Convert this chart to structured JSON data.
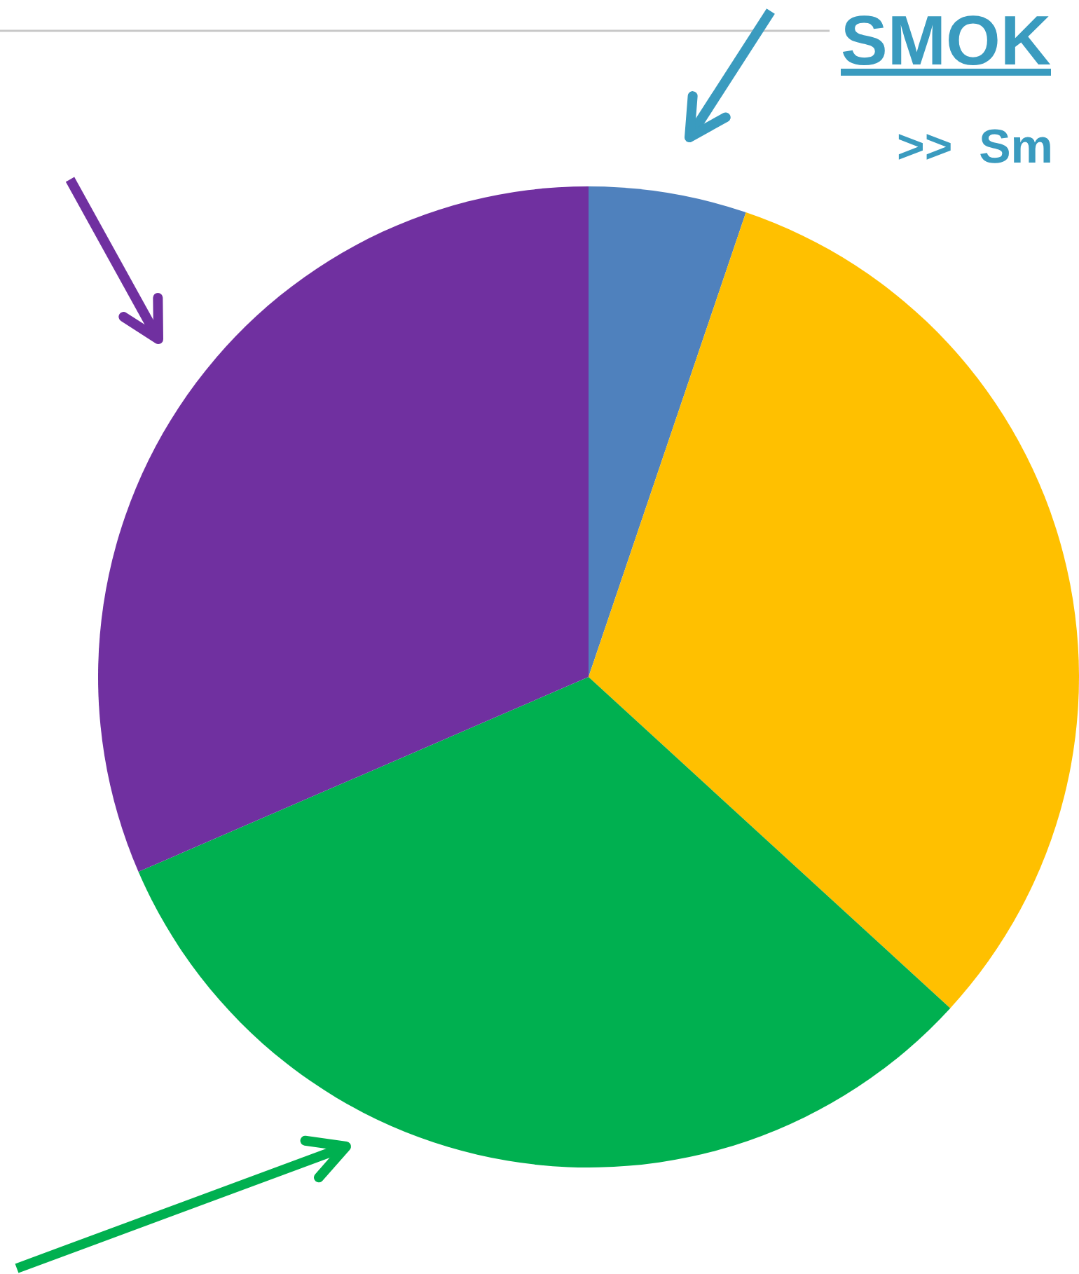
{
  "chart_data": {
    "type": "pie",
    "title": "SMOK",
    "subtitle": ">>  Sm",
    "categories": [
      null,
      null,
      null,
      null
    ],
    "values": [
      5.2,
      31.6,
      31.7,
      31.5
    ],
    "colors": [
      "#4f81bd",
      "#ffc000",
      "#00b050",
      "#7030a0"
    ]
  }
}
